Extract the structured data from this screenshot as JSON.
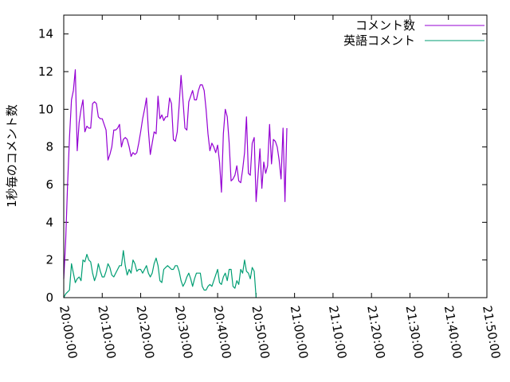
{
  "chart_data": {
    "type": "line",
    "ylabel": "1秒毎のコメント数",
    "xlabel": "",
    "ylim": [
      0,
      15
    ],
    "y_ticks": [
      "0",
      "2",
      "4",
      "6",
      "8",
      "10",
      "12",
      "14"
    ],
    "x_ticks": [
      "20:00:00",
      "20:10:00",
      "20:20:00",
      "20:30:00",
      "20:40:00",
      "20:50:00",
      "21:00:00",
      "21:10:00",
      "21:20:00",
      "21:30:00",
      "21:40:00",
      "21:50:00"
    ],
    "xlim": [
      "20:00:00",
      "21:50:00"
    ],
    "grid": false,
    "legend_position": "top-right",
    "series": [
      {
        "name": "コメント数",
        "color": "#9400d3",
        "points": [
          [
            "20:00:00",
            1.0
          ],
          [
            "20:00:30",
            3.0
          ],
          [
            "20:01:00",
            6.0
          ],
          [
            "20:01:30",
            8.5
          ],
          [
            "20:02:00",
            10.5
          ],
          [
            "20:02:30",
            11.0
          ],
          [
            "20:03:00",
            12.1
          ],
          [
            "20:03:30",
            7.8
          ],
          [
            "20:04:00",
            9.3
          ],
          [
            "20:04:30",
            10.0
          ],
          [
            "20:05:00",
            10.5
          ],
          [
            "20:05:30",
            8.8
          ],
          [
            "20:06:00",
            9.1
          ],
          [
            "20:06:30",
            9.0
          ],
          [
            "20:07:00",
            9.0
          ],
          [
            "20:07:30",
            10.3
          ],
          [
            "20:08:00",
            10.4
          ],
          [
            "20:08:30",
            10.3
          ],
          [
            "20:09:00",
            9.6
          ],
          [
            "20:09:30",
            9.5
          ],
          [
            "20:10:00",
            9.5
          ],
          [
            "20:10:30",
            9.2
          ],
          [
            "20:11:00",
            8.9
          ],
          [
            "20:11:30",
            7.3
          ],
          [
            "20:12:00",
            7.6
          ],
          [
            "20:12:30",
            8.0
          ],
          [
            "20:13:00",
            8.9
          ],
          [
            "20:13:30",
            8.9
          ],
          [
            "20:14:00",
            9.0
          ],
          [
            "20:14:30",
            9.2
          ],
          [
            "20:15:00",
            8.0
          ],
          [
            "20:15:30",
            8.4
          ],
          [
            "20:16:00",
            8.5
          ],
          [
            "20:16:30",
            8.4
          ],
          [
            "20:17:00",
            8.0
          ],
          [
            "20:17:30",
            7.5
          ],
          [
            "20:18:00",
            7.7
          ],
          [
            "20:18:30",
            7.6
          ],
          [
            "20:19:00",
            7.7
          ],
          [
            "20:19:30",
            8.2
          ],
          [
            "20:20:00",
            8.8
          ],
          [
            "20:20:30",
            9.5
          ],
          [
            "20:21:00",
            10.0
          ],
          [
            "20:21:30",
            10.6
          ],
          [
            "20:22:00",
            8.9
          ],
          [
            "20:22:30",
            7.6
          ],
          [
            "20:23:00",
            8.2
          ],
          [
            "20:23:30",
            8.8
          ],
          [
            "20:24:00",
            8.7
          ],
          [
            "20:24:30",
            10.7
          ],
          [
            "20:25:00",
            9.5
          ],
          [
            "20:25:30",
            9.7
          ],
          [
            "20:26:00",
            9.4
          ],
          [
            "20:26:30",
            9.6
          ],
          [
            "20:27:00",
            9.6
          ],
          [
            "20:27:30",
            10.6
          ],
          [
            "20:28:00",
            10.3
          ],
          [
            "20:28:30",
            8.4
          ],
          [
            "20:29:00",
            8.3
          ],
          [
            "20:29:30",
            8.8
          ],
          [
            "20:30:00",
            10.2
          ],
          [
            "20:30:30",
            11.8
          ],
          [
            "20:31:00",
            10.5
          ],
          [
            "20:31:30",
            9.0
          ],
          [
            "20:32:00",
            8.9
          ],
          [
            "20:32:30",
            10.4
          ],
          [
            "20:33:00",
            10.7
          ],
          [
            "20:33:30",
            11.0
          ],
          [
            "20:34:00",
            10.5
          ],
          [
            "20:34:30",
            10.5
          ],
          [
            "20:35:00",
            11.0
          ],
          [
            "20:35:30",
            11.3
          ],
          [
            "20:36:00",
            11.3
          ],
          [
            "20:36:30",
            11.0
          ],
          [
            "20:37:00",
            10.0
          ],
          [
            "20:37:30",
            8.7
          ],
          [
            "20:38:00",
            7.8
          ],
          [
            "20:38:30",
            8.2
          ],
          [
            "20:39:00",
            8.0
          ],
          [
            "20:39:30",
            7.7
          ],
          [
            "20:40:00",
            8.1
          ],
          [
            "20:40:30",
            7.2
          ],
          [
            "20:41:00",
            5.6
          ],
          [
            "20:41:30",
            8.7
          ],
          [
            "20:42:00",
            10.0
          ],
          [
            "20:42:30",
            9.6
          ],
          [
            "20:43:00",
            8.2
          ],
          [
            "20:43:30",
            6.2
          ],
          [
            "20:44:00",
            6.3
          ],
          [
            "20:44:30",
            6.5
          ],
          [
            "20:45:00",
            7.0
          ],
          [
            "20:45:30",
            6.2
          ],
          [
            "20:46:00",
            6.1
          ],
          [
            "20:46:30",
            6.8
          ],
          [
            "20:47:00",
            7.7
          ],
          [
            "20:47:30",
            9.6
          ],
          [
            "20:48:00",
            6.6
          ],
          [
            "20:48:30",
            6.5
          ],
          [
            "20:49:00",
            8.2
          ],
          [
            "20:49:30",
            8.5
          ],
          [
            "20:50:00",
            5.1
          ],
          [
            "20:50:30",
            6.5
          ],
          [
            "20:51:00",
            7.9
          ],
          [
            "20:51:30",
            5.8
          ],
          [
            "20:52:00",
            7.2
          ],
          [
            "20:52:30",
            6.6
          ],
          [
            "20:53:00",
            7.0
          ],
          [
            "20:53:30",
            9.2
          ],
          [
            "20:54:00",
            7.1
          ],
          [
            "20:54:30",
            8.4
          ],
          [
            "20:55:00",
            8.3
          ],
          [
            "20:55:30",
            8.0
          ],
          [
            "20:56:00",
            7.3
          ],
          [
            "20:56:30",
            6.3
          ],
          [
            "20:57:00",
            9.0
          ],
          [
            "20:57:30",
            5.1
          ],
          [
            "20:58:00",
            9.0
          ]
        ]
      },
      {
        "name": "英語コメント",
        "color": "#009e73",
        "points": [
          [
            "20:00:00",
            0.0
          ],
          [
            "20:00:30",
            0.2
          ],
          [
            "20:01:00",
            0.3
          ],
          [
            "20:01:30",
            0.4
          ],
          [
            "20:02:00",
            1.8
          ],
          [
            "20:02:30",
            1.3
          ],
          [
            "20:03:00",
            0.8
          ],
          [
            "20:03:30",
            1.0
          ],
          [
            "20:04:00",
            1.1
          ],
          [
            "20:04:30",
            0.9
          ],
          [
            "20:05:00",
            2.0
          ],
          [
            "20:05:30",
            1.9
          ],
          [
            "20:06:00",
            2.3
          ],
          [
            "20:06:30",
            2.0
          ],
          [
            "20:07:00",
            1.9
          ],
          [
            "20:07:30",
            1.3
          ],
          [
            "20:08:00",
            0.9
          ],
          [
            "20:08:30",
            1.2
          ],
          [
            "20:09:00",
            1.8
          ],
          [
            "20:09:30",
            1.4
          ],
          [
            "20:10:00",
            1.1
          ],
          [
            "20:10:30",
            1.1
          ],
          [
            "20:11:00",
            1.4
          ],
          [
            "20:11:30",
            1.8
          ],
          [
            "20:12:00",
            1.6
          ],
          [
            "20:12:30",
            1.2
          ],
          [
            "20:13:00",
            1.1
          ],
          [
            "20:13:30",
            1.3
          ],
          [
            "20:14:00",
            1.5
          ],
          [
            "20:14:30",
            1.7
          ],
          [
            "20:15:00",
            1.7
          ],
          [
            "20:15:30",
            2.5
          ],
          [
            "20:16:00",
            1.7
          ],
          [
            "20:16:30",
            1.2
          ],
          [
            "20:17:00",
            1.5
          ],
          [
            "20:17:30",
            1.3
          ],
          [
            "20:18:00",
            2.0
          ],
          [
            "20:18:30",
            1.8
          ],
          [
            "20:19:00",
            1.4
          ],
          [
            "20:19:30",
            1.5
          ],
          [
            "20:20:00",
            1.5
          ],
          [
            "20:20:30",
            1.3
          ],
          [
            "20:21:00",
            1.5
          ],
          [
            "20:21:30",
            1.7
          ],
          [
            "20:22:00",
            1.3
          ],
          [
            "20:22:30",
            1.1
          ],
          [
            "20:23:00",
            1.3
          ],
          [
            "20:23:30",
            1.8
          ],
          [
            "20:24:00",
            2.1
          ],
          [
            "20:24:30",
            1.7
          ],
          [
            "20:25:00",
            0.9
          ],
          [
            "20:25:30",
            0.8
          ],
          [
            "20:26:00",
            1.5
          ],
          [
            "20:26:30",
            1.6
          ],
          [
            "20:27:00",
            1.7
          ],
          [
            "20:27:30",
            1.6
          ],
          [
            "20:28:00",
            1.5
          ],
          [
            "20:28:30",
            1.5
          ],
          [
            "20:29:00",
            1.7
          ],
          [
            "20:29:30",
            1.7
          ],
          [
            "20:30:00",
            1.4
          ],
          [
            "20:30:30",
            0.9
          ],
          [
            "20:31:00",
            0.6
          ],
          [
            "20:31:30",
            0.8
          ],
          [
            "20:32:00",
            1.1
          ],
          [
            "20:32:30",
            1.3
          ],
          [
            "20:33:00",
            1.0
          ],
          [
            "20:33:30",
            0.6
          ],
          [
            "20:34:00",
            1.0
          ],
          [
            "20:34:30",
            1.3
          ],
          [
            "20:35:00",
            1.3
          ],
          [
            "20:35:30",
            1.3
          ],
          [
            "20:36:00",
            0.6
          ],
          [
            "20:36:30",
            0.4
          ],
          [
            "20:37:00",
            0.4
          ],
          [
            "20:37:30",
            0.6
          ],
          [
            "20:38:00",
            0.7
          ],
          [
            "20:38:30",
            0.6
          ],
          [
            "20:39:00",
            0.9
          ],
          [
            "20:39:30",
            1.2
          ],
          [
            "20:40:00",
            1.5
          ],
          [
            "20:40:30",
            0.8
          ],
          [
            "20:41:00",
            0.7
          ],
          [
            "20:41:30",
            1.1
          ],
          [
            "20:42:00",
            1.3
          ],
          [
            "20:42:30",
            0.9
          ],
          [
            "20:43:00",
            1.5
          ],
          [
            "20:43:30",
            1.5
          ],
          [
            "20:44:00",
            0.6
          ],
          [
            "20:44:30",
            0.5
          ],
          [
            "20:45:00",
            0.9
          ],
          [
            "20:45:30",
            0.7
          ],
          [
            "20:46:00",
            1.5
          ],
          [
            "20:46:30",
            1.3
          ],
          [
            "20:47:00",
            2.0
          ],
          [
            "20:47:30",
            1.4
          ],
          [
            "20:48:00",
            1.3
          ],
          [
            "20:48:30",
            1.0
          ],
          [
            "20:49:00",
            1.6
          ],
          [
            "20:49:30",
            1.4
          ],
          [
            "20:50:00",
            0.0
          ]
        ]
      }
    ]
  }
}
